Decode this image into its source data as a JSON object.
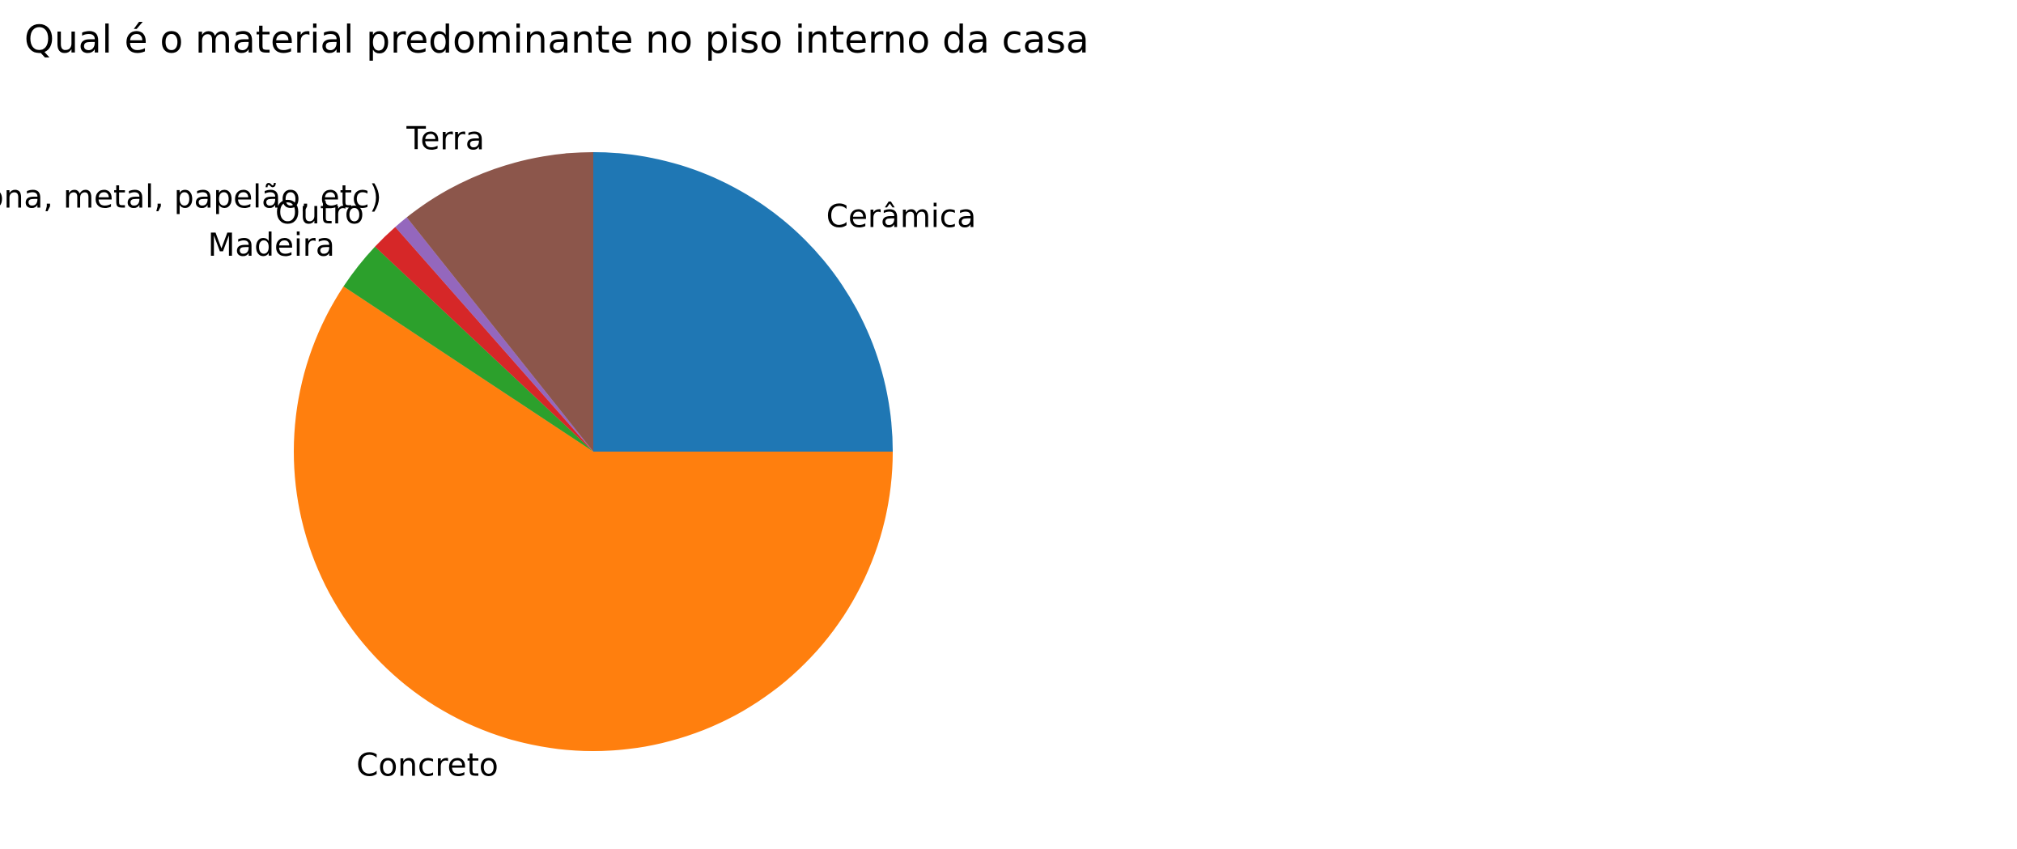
{
  "chart_data": {
    "type": "pie",
    "title": "Qual é o material predominante no piso interno da casa",
    "start_angle_deg": 90,
    "direction": "clockwise",
    "slices": [
      {
        "label": "Cerâmica",
        "value": 25.0,
        "color": "#1f77b4"
      },
      {
        "label": "Concreto",
        "value": 59.3,
        "color": "#ff7f0e"
      },
      {
        "label": "Madeira",
        "value": 2.7,
        "color": "#2ca02c"
      },
      {
        "label": "Outro",
        "value": 1.5,
        "color": "#d62728"
      },
      {
        "label": "Sucata sobre a terra (retalhos de plástico, lona, metal, papelão, etc)",
        "value": 0.8,
        "color": "#9467bd"
      },
      {
        "label": "Terra",
        "value": 10.7,
        "color": "#8c564b"
      }
    ]
  }
}
